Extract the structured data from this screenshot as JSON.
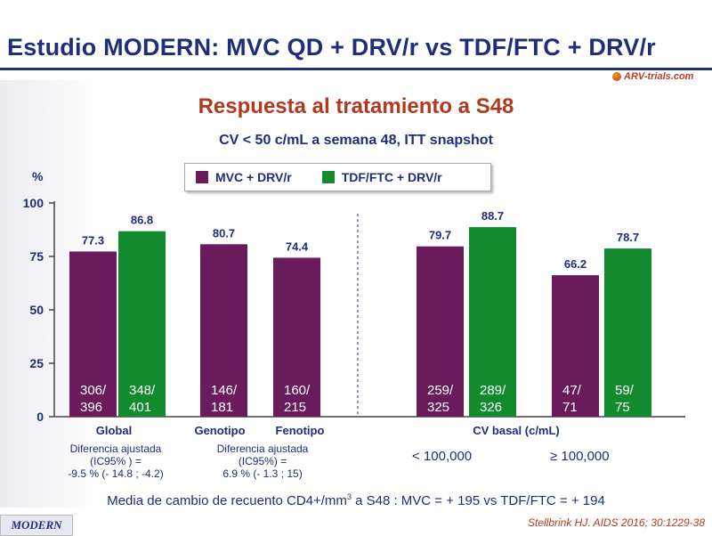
{
  "title": "Estudio MODERN: MVC QD + DRV/r vs TDF/FTC + DRV/r",
  "logo_text": "ARV-trials.com",
  "subtitle": "Respuesta al tratamiento a S48",
  "subtitle2": "CV < 50 c/mL a semana 48, ITT snapshot",
  "percent_label": "%",
  "legend": [
    {
      "label": "MVC + DRV/r",
      "color": "#6a1b5c"
    },
    {
      "label": "TDF/FTC + DRV/r",
      "color": "#128a2d"
    }
  ],
  "chart_data": {
    "type": "bar",
    "ylim": [
      0,
      100
    ],
    "yticks": [
      "0",
      "25",
      "50",
      "75",
      "100"
    ],
    "bars": [
      {
        "group": "Global",
        "series": "MVC + DRV/r",
        "value": 77.3,
        "label": "77.3",
        "count1": "306/",
        "count2": "396"
      },
      {
        "group": "Global",
        "series": "TDF/FTC + DRV/r",
        "value": 86.8,
        "label": "86.8",
        "count1": "348/",
        "count2": "401"
      },
      {
        "group": "Genotipo",
        "series": "MVC + DRV/r",
        "value": 80.7,
        "label": "80.7",
        "count1": "146/",
        "count2": "181"
      },
      {
        "group": "Fenotipo",
        "series": "MVC + DRV/r",
        "value": 74.4,
        "label": "74.4",
        "count1": "160/",
        "count2": "215"
      },
      {
        "group": "< 100,000",
        "series": "MVC + DRV/r",
        "value": 79.7,
        "label": "79.7",
        "count1": "259/",
        "count2": "325"
      },
      {
        "group": "< 100,000",
        "series": "TDF/FTC + DRV/r",
        "value": 88.7,
        "label": "88.7",
        "count1": "289/",
        "count2": "326"
      },
      {
        "group": "≥ 100,000",
        "series": "MVC + DRV/r",
        "value": 66.2,
        "label": "66.2",
        "count1": "47/",
        "count2": "71"
      },
      {
        "group": "≥ 100,000",
        "series": "TDF/FTC + DRV/r",
        "value": 78.7,
        "label": "78.7",
        "count1": "59/",
        "count2": "75"
      }
    ]
  },
  "categories": {
    "global": "Global",
    "genotipo": "Genotipo",
    "fenotipo": "Fenotipo",
    "cv_basal": "CV basal (c/mL)",
    "lt100k": "< 100,000",
    "ge100k": "≥ 100,000"
  },
  "notes": {
    "global_l1": "Diferencia ajustada",
    "global_l2": "(IC95% ) =",
    "global_l3": "-9.5 % (- 14.8 ; -4.2)",
    "geno_l1": "Diferencia ajustada",
    "geno_l2": "(IC95%) =",
    "geno_l3": "6.9 % (- 1.3 ; 15)"
  },
  "cd4_text_a": "Media de cambio de recuento CD4+/mm",
  "cd4_sup": "3",
  "cd4_text_b": " a S48 : MVC = + 195 vs TDF/FTC = + 194",
  "footer": "MODERN",
  "citation": "Stellbrink HJ. AIDS 2016; 30:1229-38"
}
